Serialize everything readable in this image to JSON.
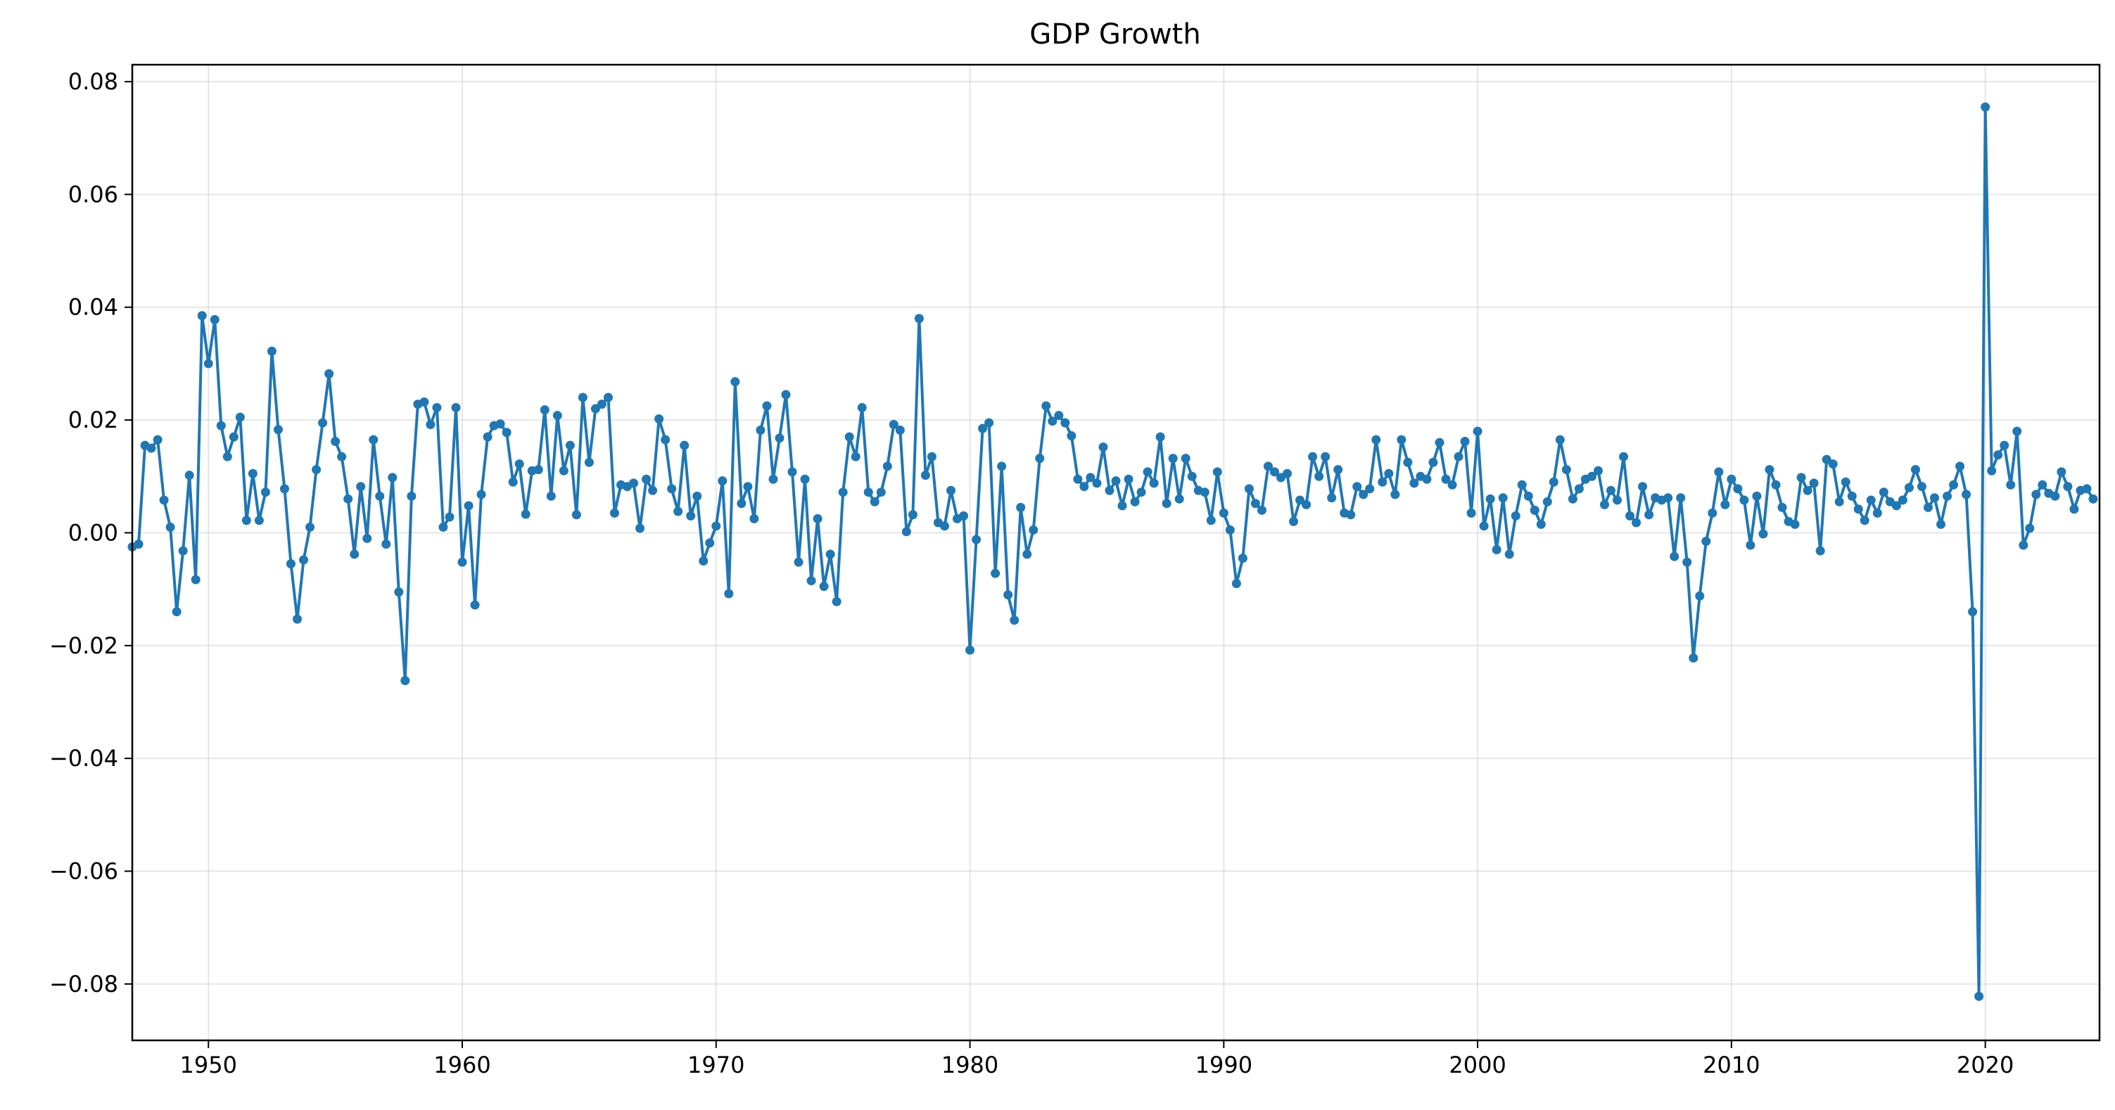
{
  "chart_data": {
    "type": "line",
    "title": "GDP Growth",
    "xlabel": "",
    "ylabel": "",
    "xlim": [
      1947.0,
      2024.5
    ],
    "ylim": [
      -0.09,
      0.083
    ],
    "grid": true,
    "color": "#1f77b4",
    "marker": "circle",
    "x_ticks": [
      1950,
      1960,
      1970,
      1980,
      1990,
      2000,
      2010,
      2020
    ],
    "x_tick_labels": [
      "1950",
      "1960",
      "1970",
      "1980",
      "1990",
      "2000",
      "2010",
      "2020"
    ],
    "y_ticks": [
      0.08,
      0.06,
      0.04,
      0.02,
      0.0,
      -0.02,
      -0.04,
      -0.06,
      -0.08
    ],
    "y_tick_labels": [
      "0.08",
      "0.06",
      "0.04",
      "0.02",
      "0.00",
      "−0.02",
      "−0.04",
      "−0.06",
      "−0.08"
    ],
    "start_year": 1947.0,
    "step_years": 0.25,
    "values": [
      -0.0025,
      -0.002,
      0.0155,
      0.015,
      0.0165,
      0.0058,
      0.001,
      -0.014,
      -0.0032,
      0.0102,
      -0.0083,
      0.0385,
      0.03,
      0.0378,
      0.019,
      0.0135,
      0.017,
      0.0205,
      0.0022,
      0.0105,
      0.0022,
      0.0072,
      0.0322,
      0.0183,
      0.0078,
      -0.0055,
      -0.0153,
      -0.0048,
      0.001,
      0.0112,
      0.0195,
      0.0282,
      0.0162,
      0.0135,
      0.006,
      -0.0038,
      0.0082,
      -0.001,
      0.0165,
      0.0065,
      -0.002,
      0.0098,
      -0.0105,
      -0.0262,
      0.0065,
      0.0228,
      0.0232,
      0.0192,
      0.0222,
      0.001,
      0.0028,
      0.0222,
      -0.0052,
      0.0048,
      -0.0128,
      0.0068,
      0.017,
      0.019,
      0.0193,
      0.0178,
      0.009,
      0.0122,
      0.0033,
      0.011,
      0.0112,
      0.0218,
      0.0065,
      0.0208,
      0.011,
      0.0155,
      0.0032,
      0.024,
      0.0125,
      0.022,
      0.0228,
      0.024,
      0.0035,
      0.0085,
      0.0082,
      0.0088,
      0.0008,
      0.0095,
      0.0075,
      0.0202,
      0.0165,
      0.0078,
      0.0038,
      0.0155,
      0.003,
      0.0065,
      -0.005,
      -0.0018,
      0.0012,
      0.0092,
      -0.0108,
      0.0268,
      0.0052,
      0.0082,
      0.0025,
      0.0182,
      0.0225,
      0.0095,
      0.0168,
      0.0245,
      0.0108,
      -0.0052,
      0.0095,
      -0.0085,
      0.0025,
      -0.0095,
      -0.0038,
      -0.0122,
      0.0072,
      0.017,
      0.0135,
      0.0222,
      0.0072,
      0.0055,
      0.0072,
      0.0118,
      0.0192,
      0.0182,
      0.0002,
      0.0032,
      0.038,
      0.0102,
      0.0135,
      0.0018,
      0.0012,
      0.0075,
      0.0025,
      0.003,
      -0.0208,
      -0.0012,
      0.0185,
      0.0195,
      -0.0072,
      0.0118,
      -0.011,
      -0.0155,
      0.0045,
      -0.0038,
      0.0005,
      0.0132,
      0.0225,
      0.0198,
      0.0208,
      0.0195,
      0.0172,
      0.0095,
      0.0082,
      0.0098,
      0.0088,
      0.0152,
      0.0075,
      0.0092,
      0.0048,
      0.0095,
      0.0055,
      0.0072,
      0.0108,
      0.0088,
      0.017,
      0.0052,
      0.0132,
      0.006,
      0.0132,
      0.01,
      0.0075,
      0.0072,
      0.0022,
      0.0108,
      0.0035,
      0.0005,
      -0.009,
      -0.0045,
      0.0078,
      0.0052,
      0.004,
      0.0118,
      0.0108,
      0.0098,
      0.0105,
      0.002,
      0.0058,
      0.005,
      0.0135,
      0.01,
      0.0135,
      0.0062,
      0.0112,
      0.0035,
      0.0032,
      0.0082,
      0.0068,
      0.0078,
      0.0165,
      0.009,
      0.0105,
      0.0068,
      0.0165,
      0.0125,
      0.0088,
      0.01,
      0.0095,
      0.0125,
      0.016,
      0.0095,
      0.0085,
      0.0135,
      0.0162,
      0.0035,
      0.018,
      0.0012,
      0.006,
      -0.003,
      0.0062,
      -0.0038,
      0.003,
      0.0085,
      0.0065,
      0.004,
      0.0015,
      0.0055,
      0.009,
      0.0165,
      0.0112,
      0.006,
      0.0078,
      0.0095,
      0.01,
      0.011,
      0.005,
      0.0075,
      0.0058,
      0.0135,
      0.003,
      0.0018,
      0.0082,
      0.0032,
      0.0062,
      0.0058,
      0.0062,
      -0.0042,
      0.0062,
      -0.0052,
      -0.0222,
      -0.0112,
      -0.0015,
      0.0035,
      0.0108,
      0.005,
      0.0095,
      0.0078,
      0.0058,
      -0.0022,
      0.0065,
      -0.0002,
      0.0112,
      0.0085,
      0.0045,
      0.002,
      0.0015,
      0.0098,
      0.0075,
      0.0088,
      -0.0032,
      0.013,
      0.0122,
      0.0055,
      0.009,
      0.0065,
      0.0042,
      0.0022,
      0.0058,
      0.0035,
      0.0072,
      0.0055,
      0.0048,
      0.0058,
      0.008,
      0.0112,
      0.0082,
      0.0045,
      0.0062,
      0.0015,
      0.0065,
      0.0085,
      0.0118,
      0.0068,
      -0.014,
      -0.0822,
      0.0755,
      0.011,
      0.0138,
      0.0155,
      0.0085,
      0.018,
      -0.0022,
      0.0008,
      0.0068,
      0.0085,
      0.007,
      0.0065,
      0.0108,
      0.0082,
      0.0042,
      0.0075,
      0.0078,
      0.006
    ]
  }
}
